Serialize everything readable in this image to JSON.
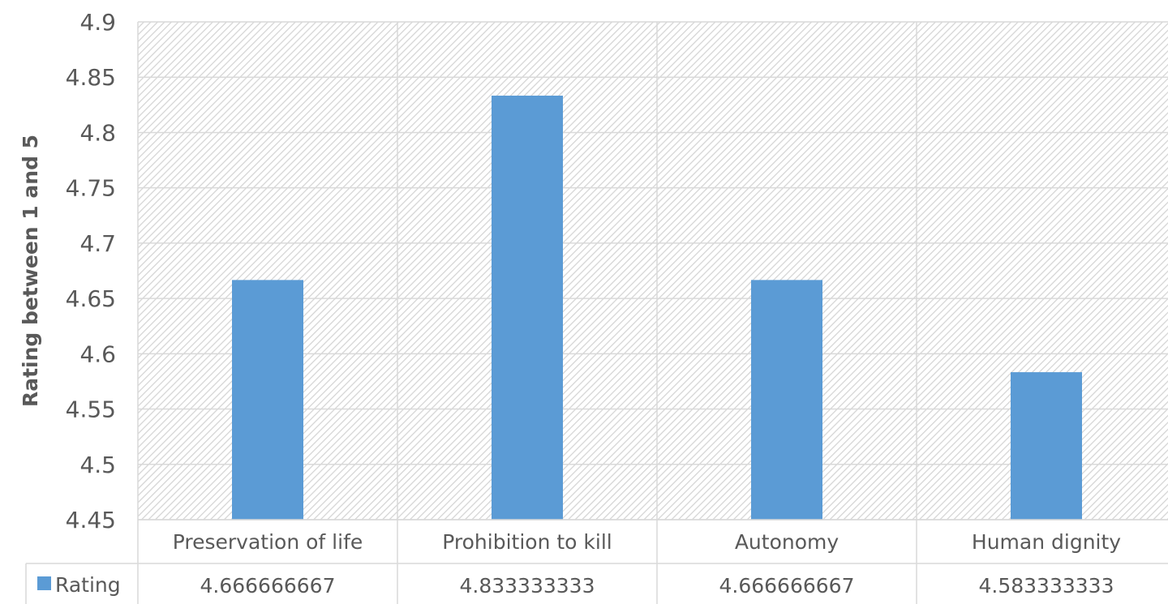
{
  "chart_data": {
    "type": "bar",
    "ylabel": "Rating between 1 and 5",
    "xlabel": "",
    "categories": [
      "Preservation of life",
      "Prohibition to kill",
      "Autonomy",
      "Human dignity"
    ],
    "series": [
      {
        "name": "Rating",
        "values": [
          4.666666667,
          4.833333333,
          4.666666667,
          4.583333333
        ],
        "value_labels": [
          "4.666666667",
          "4.833333333",
          "4.666666667",
          "4.583333333"
        ],
        "color": "#5b9bd5"
      }
    ],
    "ylim": [
      4.45,
      4.9
    ],
    "yticks": [
      "4.45",
      "4.5",
      "4.55",
      "4.6",
      "4.65",
      "4.7",
      "4.75",
      "4.8",
      "4.85",
      "4.9"
    ],
    "grid": true,
    "data_table": true,
    "legend": "data-table-left",
    "plot_background": "hatched-gray"
  }
}
